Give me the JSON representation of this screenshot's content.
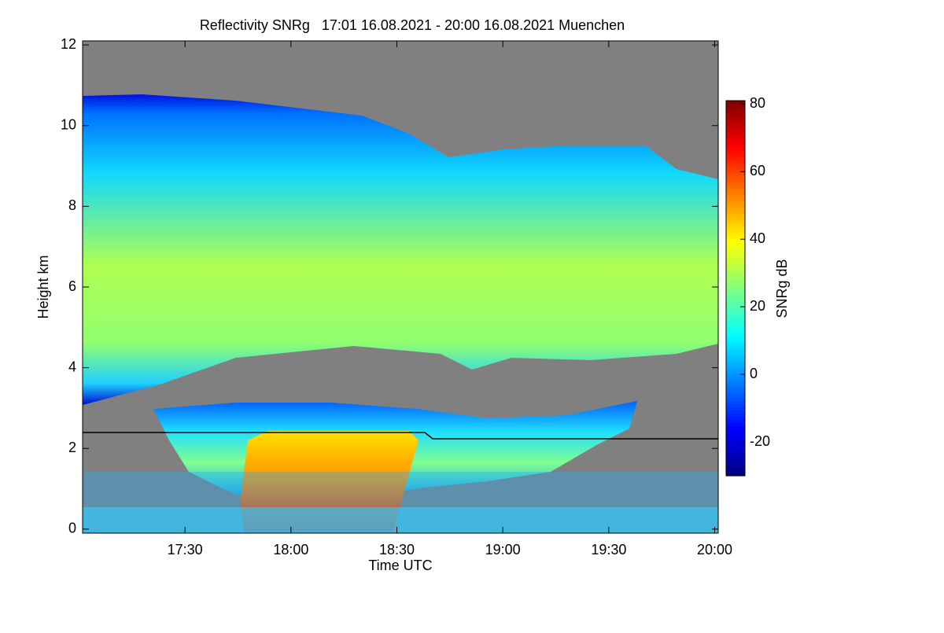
{
  "chart_data": {
    "type": "heatmap",
    "title": "Reflectivity SNRg   17:01 16.08.2021 - 20:00 16.08.2021 Muenchen",
    "x_label": "Time UTC",
    "y_label": "Height km",
    "colorbar_label": "SNRg dB",
    "colormap": "jet",
    "xlim": [
      1021,
      1201
    ],
    "xticks": [
      {
        "value": 1050,
        "label": "17:30"
      },
      {
        "value": 1080,
        "label": "18:00"
      },
      {
        "value": 1110,
        "label": "18:30"
      },
      {
        "value": 1140,
        "label": "19:00"
      },
      {
        "value": 1170,
        "label": "19:30"
      },
      {
        "value": 1200,
        "label": "20:00"
      }
    ],
    "ylim": [
      -0.1,
      12.1
    ],
    "yticks": [
      0,
      2,
      4,
      6,
      8,
      10,
      12
    ],
    "clim": [
      -30,
      81
    ],
    "cticks": [
      -20,
      0,
      20,
      40,
      60,
      80
    ]
  }
}
